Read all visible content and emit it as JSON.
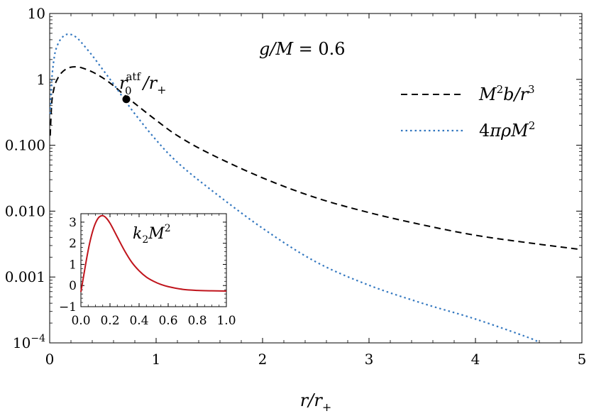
{
  "chart_data": [
    {
      "type": "line",
      "scale_y": "log",
      "xlabel": "r/r+",
      "ylabel": "",
      "xlim": [
        0,
        5
      ],
      "ylim": [
        0.0001,
        10
      ],
      "x_ticks": [
        0,
        1,
        2,
        3,
        4,
        5
      ],
      "y_ticks": [
        {
          "value": 0.0001,
          "label": "10−4"
        },
        {
          "value": 0.001,
          "label": "0.001"
        },
        {
          "value": 0.01,
          "label": "0.010"
        },
        {
          "value": 0.1,
          "label": "0.100"
        },
        {
          "value": 1,
          "label": "1"
        },
        {
          "value": 10,
          "label": "10"
        }
      ],
      "annotations": {
        "parameter": "g/M = 0.6",
        "point_label": "r0atf/r+"
      },
      "legend_position": "right",
      "series": [
        {
          "name": "M2b/r3",
          "style": "dashed",
          "color": "#000000",
          "x": [
            0.005,
            0.02,
            0.04,
            0.06,
            0.1,
            0.15,
            0.2,
            0.25,
            0.3,
            0.4,
            0.5,
            0.6,
            0.7,
            0.8,
            1.0,
            1.2,
            1.5,
            2.0,
            2.5,
            3.0,
            3.5,
            4.0,
            4.5,
            5.0
          ],
          "y": [
            0.14,
            0.45,
            0.72,
            0.92,
            1.2,
            1.42,
            1.53,
            1.55,
            1.5,
            1.3,
            1.05,
            0.8,
            0.58,
            0.43,
            0.24,
            0.14,
            0.075,
            0.032,
            0.016,
            0.0095,
            0.0062,
            0.0043,
            0.0033,
            0.0026
          ]
        },
        {
          "name": "4πρM2",
          "style": "dotted",
          "color": "#3478c0",
          "x": [
            0.005,
            0.02,
            0.04,
            0.06,
            0.1,
            0.15,
            0.2,
            0.25,
            0.3,
            0.4,
            0.5,
            0.6,
            0.7,
            0.8,
            1.0,
            1.2,
            1.5,
            2.0,
            2.5,
            3.0,
            3.5,
            4.0,
            4.5,
            4.6
          ],
          "y": [
            0.3,
            1.0,
            2.0,
            2.9,
            4.0,
            4.75,
            4.8,
            4.35,
            3.6,
            2.3,
            1.4,
            0.85,
            0.5,
            0.3,
            0.12,
            0.055,
            0.022,
            0.0055,
            0.0017,
            0.00075,
            0.0004,
            0.00023,
            0.00012,
            0.0001
          ]
        }
      ],
      "point": {
        "x": 0.72,
        "y": 0.5,
        "color": "#000000"
      }
    },
    {
      "type": "line",
      "xlim": [
        0,
        1
      ],
      "ylim": [
        -1,
        3.4
      ],
      "x_ticks": [
        {
          "value": 0.0,
          "label": "0.0"
        },
        {
          "value": 0.2,
          "label": "0.2"
        },
        {
          "value": 0.4,
          "label": "0.4"
        },
        {
          "value": 0.6,
          "label": "0.6"
        },
        {
          "value": 0.8,
          "label": "0.8"
        },
        {
          "value": 1.0,
          "label": "1.0"
        }
      ],
      "y_ticks": [
        {
          "value": -1,
          "label": "−1"
        },
        {
          "value": 0,
          "label": "0"
        },
        {
          "value": 1,
          "label": "1"
        },
        {
          "value": 2,
          "label": "2"
        },
        {
          "value": 3,
          "label": "3"
        }
      ],
      "label": "k2M2",
      "series": [
        {
          "name": "",
          "color": "#c0141c",
          "x": [
            0.0,
            0.02,
            0.04,
            0.06,
            0.08,
            0.1,
            0.12,
            0.14,
            0.16,
            0.18,
            0.2,
            0.22,
            0.25,
            0.3,
            0.35,
            0.4,
            0.45,
            0.5,
            0.55,
            0.6,
            0.7,
            0.8,
            0.9,
            1.0
          ],
          "y": [
            -0.3,
            0.5,
            1.3,
            2.0,
            2.55,
            2.95,
            3.2,
            3.3,
            3.28,
            3.15,
            2.95,
            2.7,
            2.3,
            1.65,
            1.1,
            0.7,
            0.4,
            0.2,
            0.05,
            -0.05,
            -0.18,
            -0.23,
            -0.25,
            -0.26
          ]
        }
      ]
    }
  ]
}
